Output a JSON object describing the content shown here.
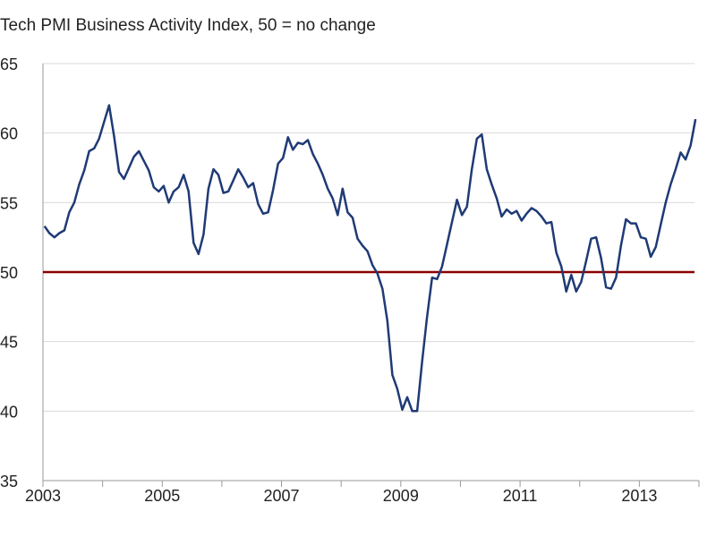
{
  "chart_data": {
    "type": "line",
    "title": "Tech PMI Business Activity Index, 50 = no change",
    "xlabel": "",
    "ylabel": "",
    "ylim": [
      35,
      65
    ],
    "yticks": [
      35,
      40,
      45,
      50,
      55,
      60,
      65
    ],
    "xlim": [
      2003,
      2014
    ],
    "xtick_labels": [
      "2003",
      "2005",
      "2007",
      "2009",
      "2011",
      "2013"
    ],
    "grid": "horizontal",
    "x_start": "2003-01",
    "x_frequency": "monthly",
    "series": [
      {
        "color": "#1f3a75",
        "values": [
          53.3,
          52.8,
          52.5,
          52.8,
          53.0,
          54.3,
          55.0,
          56.3,
          57.3,
          58.7,
          58.9,
          59.6,
          60.8,
          62.0,
          59.8,
          57.2,
          56.7,
          57.5,
          58.3,
          58.7,
          58.0,
          57.3,
          56.1,
          55.8,
          56.2,
          55.0,
          55.8,
          56.1,
          57.0,
          55.8,
          52.1,
          51.3,
          52.7,
          56.0,
          57.4,
          57.0,
          55.7,
          55.8,
          56.6,
          57.4,
          56.8,
          56.1,
          56.4,
          54.9,
          54.2,
          54.3,
          55.9,
          57.8,
          58.2,
          59.7,
          58.8,
          59.3,
          59.2,
          59.5,
          58.5,
          57.8,
          57.0,
          56.0,
          55.3,
          54.1,
          56.0,
          54.3,
          53.9,
          52.4,
          51.9,
          51.5,
          50.5,
          49.9,
          48.8,
          46.5,
          42.6,
          41.6,
          40.1,
          41.0,
          40.0,
          40.0,
          43.6,
          46.8,
          49.6,
          49.5,
          50.4,
          52.0,
          53.6,
          55.2,
          54.1,
          54.7,
          57.4,
          59.6,
          59.9,
          57.4,
          56.3,
          55.3,
          54.0,
          54.5,
          54.2,
          54.4,
          53.7,
          54.2,
          54.6,
          54.4,
          54.0,
          53.5,
          53.6,
          51.4,
          50.4,
          48.6,
          49.8,
          48.6,
          49.3,
          50.8,
          52.4,
          52.5,
          51.0,
          48.9,
          48.8,
          49.6,
          51.9,
          53.8,
          53.5,
          53.5,
          52.5,
          52.4,
          51.1,
          51.8,
          53.4,
          55.0,
          56.3,
          57.4,
          58.6,
          58.1,
          59.1,
          61.0
        ]
      }
    ],
    "reference_line": {
      "value": 50,
      "color": "#8b0000"
    }
  }
}
